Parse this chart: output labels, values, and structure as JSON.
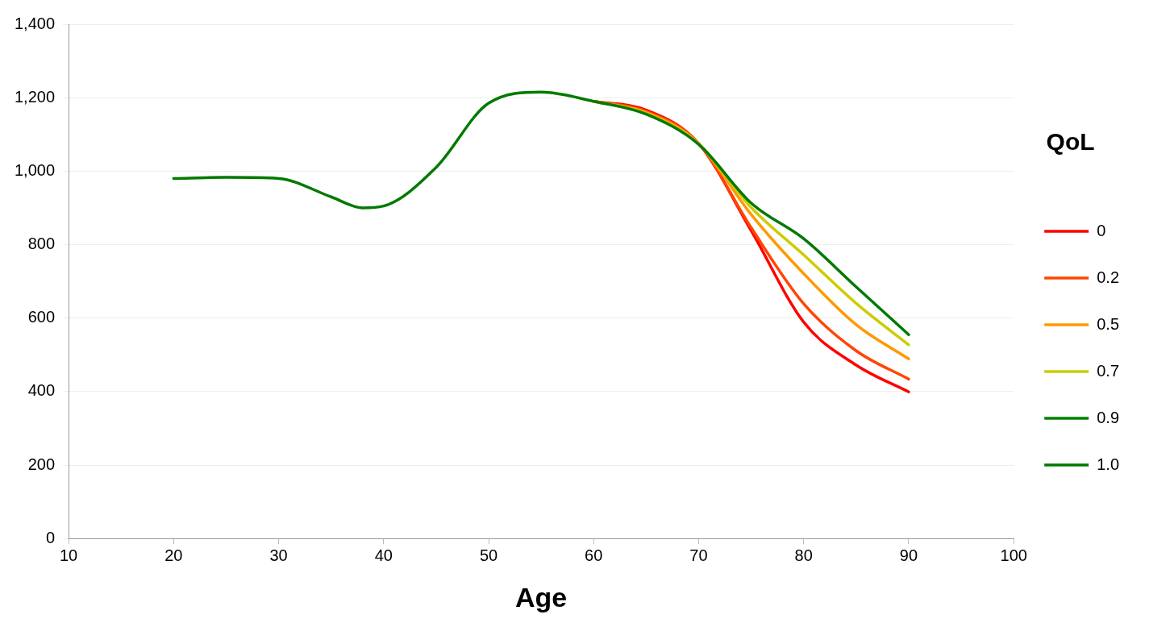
{
  "chart_data": {
    "type": "line",
    "xlabel": "Age",
    "legend_title": "QoL",
    "legend": "right",
    "grid": "y",
    "marker": "none",
    "line_style": "solid",
    "xlim": [
      10,
      100
    ],
    "xticks": [
      10,
      20,
      30,
      40,
      50,
      60,
      70,
      80,
      90,
      100
    ],
    "ylim": [
      0,
      1400
    ],
    "yticks": [
      {
        "value": 0,
        "label": "0"
      },
      {
        "value": 200,
        "label": "200"
      },
      {
        "value": 400,
        "label": "400"
      },
      {
        "value": 600,
        "label": "600"
      },
      {
        "value": 800,
        "label": "800"
      },
      {
        "value": 1000,
        "label": "1,000"
      },
      {
        "value": 1200,
        "label": "1,200"
      },
      {
        "value": 1400,
        "label": "1,400"
      }
    ],
    "x": [
      20,
      25,
      30,
      35,
      38,
      40,
      45,
      50,
      55,
      60,
      65,
      70,
      75,
      80,
      85,
      90
    ],
    "series": [
      {
        "name": "0",
        "color": "#ff0000",
        "values": [
          null,
          null,
          null,
          null,
          null,
          null,
          null,
          null,
          null,
          1190,
          1166,
          1075,
          838,
          589,
          472,
          399
        ]
      },
      {
        "name": "0.2",
        "color": "#ff4500",
        "values": [
          null,
          null,
          null,
          null,
          null,
          null,
          null,
          null,
          null,
          1190,
          1163,
          1075,
          846,
          639,
          511,
          434
        ]
      },
      {
        "name": "0.5",
        "color": "#ff9900",
        "values": [
          null,
          null,
          null,
          null,
          null,
          null,
          null,
          null,
          null,
          1190,
          1160,
          1075,
          882,
          721,
          582,
          489
        ]
      },
      {
        "name": "0.7",
        "color": "#cccc00",
        "values": [
          null,
          null,
          null,
          null,
          null,
          null,
          null,
          null,
          null,
          1190,
          1157,
          1074,
          901,
          772,
          640,
          527
        ]
      },
      {
        "name": "0.9",
        "color": "#008000",
        "values": [
          null,
          null,
          null,
          null,
          null,
          null,
          null,
          null,
          null,
          null,
          null,
          null,
          null,
          null,
          null,
          null
        ]
      },
      {
        "name": "1.0",
        "color": "#007a00",
        "values": [
          980,
          983,
          980,
          930,
          900,
          905,
          1010,
          1185,
          1215,
          1190,
          1155,
          1073,
          913,
          816,
          685,
          555
        ]
      }
    ]
  }
}
